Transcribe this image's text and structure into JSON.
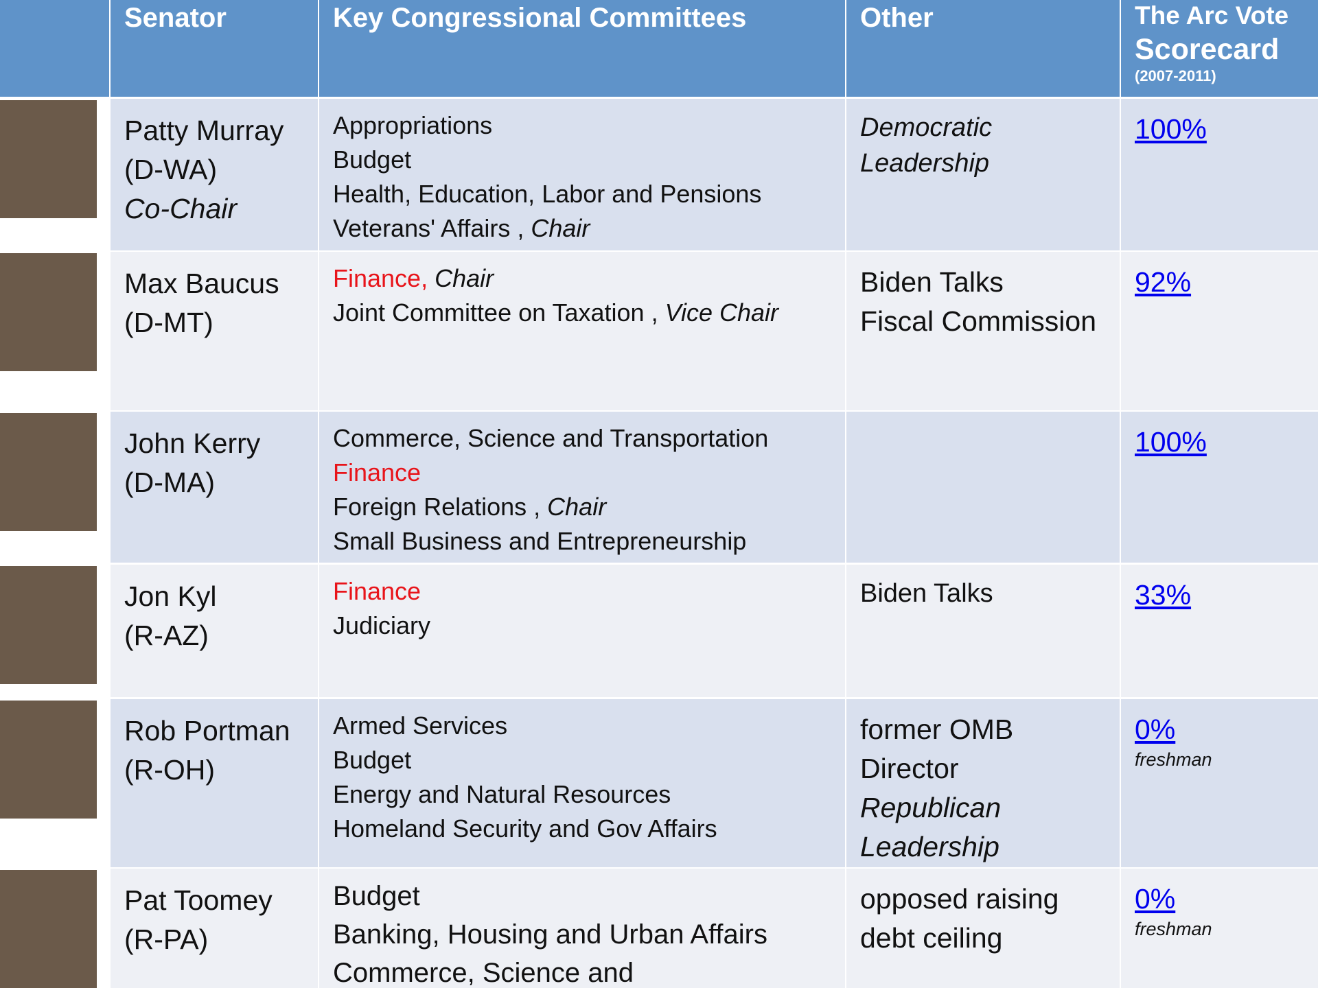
{
  "header": {
    "senator": "Senator",
    "committees": "Key Congressional Committees",
    "other": "Other",
    "scorecard": [
      "The Arc Vote",
      "Scorecard"
    ],
    "scorecard_years": "(2007-2011)"
  },
  "rows": [
    {
      "name": [
        "Patty Murray",
        "(D-WA)"
      ],
      "role": "Co-Chair",
      "committees": [
        [
          {
            "text": "Appropriations"
          }
        ],
        [
          {
            "text": "Budget"
          }
        ],
        [
          {
            "text": "Health, Education, Labor and Pensions"
          }
        ],
        [
          {
            "text": "Veterans' Affairs , "
          },
          {
            "text": "Chair",
            "italic": true
          }
        ]
      ],
      "other": [
        {
          "text": "Democratic",
          "italic": true
        },
        {
          "text": "Leadership",
          "italic": true
        }
      ],
      "score": "100%"
    },
    {
      "name": [
        "Max Baucus",
        "(D-MT)"
      ],
      "committees": [
        [
          {
            "text": "Finance,",
            "color": "#e8141a"
          },
          {
            "text": " "
          },
          {
            "text": "Chair",
            "italic": true
          }
        ],
        [
          {
            "text": "Joint Committee on Taxation , "
          },
          {
            "text": "Vice Chair",
            "italic": true
          }
        ]
      ],
      "other": [
        {
          "text": "Biden Talks"
        },
        {
          "text": "Fiscal Commission"
        }
      ],
      "score": "92%"
    },
    {
      "name": [
        "John Kerry",
        "(D-MA)"
      ],
      "committees": [
        [
          {
            "text": "Commerce, Science and Transportation"
          }
        ],
        [
          {
            "text": "Finance",
            "color": "#e8141a"
          }
        ],
        [
          {
            "text": "Foreign Relations , "
          },
          {
            "text": "Chair",
            "italic": true
          }
        ],
        [
          {
            "text": "Small Business and Entrepreneurship"
          }
        ]
      ],
      "other": [],
      "score": "100%"
    },
    {
      "name": [
        "Jon Kyl",
        "(R-AZ)"
      ],
      "committees": [
        [
          {
            "text": "Finance",
            "color": "#e8141a"
          }
        ],
        [
          {
            "text": "Judiciary"
          }
        ]
      ],
      "other": [
        {
          "text": "Biden Talks"
        }
      ],
      "score": "33%"
    },
    {
      "name": [
        "Rob Portman",
        "(R-OH)"
      ],
      "committees": [
        [
          {
            "text": "Armed Services"
          }
        ],
        [
          {
            "text": "Budget"
          }
        ],
        [
          {
            "text": "Energy and Natural Resources"
          }
        ],
        [
          {
            "text": "Homeland Security and Gov Affairs"
          }
        ]
      ],
      "other": [
        {
          "text": "former OMB"
        },
        {
          "text": "Director"
        },
        {
          "text": "Republican",
          "italic": true
        },
        {
          "text": "Leadership",
          "italic": true
        }
      ],
      "score": "0%",
      "note": "freshman"
    },
    {
      "name": [
        "Pat Toomey",
        "(R-PA)"
      ],
      "committees": [
        [
          {
            "text": "Budget"
          }
        ],
        [
          {
            "text": "Banking, Housing and Urban Affairs"
          }
        ],
        [
          {
            "text": "Commerce, Science and"
          }
        ]
      ],
      "other": [
        {
          "text": "opposed raising"
        },
        {
          "text": "debt ceiling"
        }
      ],
      "score": "0%",
      "note": "freshman"
    }
  ]
}
